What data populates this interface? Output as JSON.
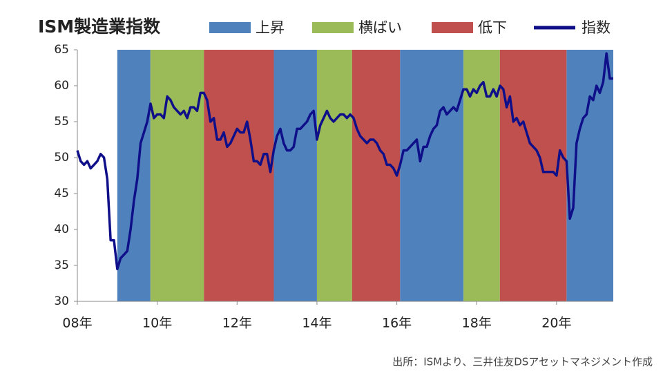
{
  "chart_data": {
    "type": "line",
    "title": "ISM製造業指数",
    "source": "出所：ISMより、三井住友DSアセットマネジメント作成",
    "phases": [
      {
        "name": "上昇",
        "color": "#4f81bd",
        "periods": [
          [
            2009.0,
            2009.83
          ],
          [
            2012.92,
            2014.0
          ],
          [
            2016.08,
            2017.67
          ],
          [
            2020.25,
            2021.42
          ]
        ]
      },
      {
        "name": "横ばい",
        "color": "#9bbb59",
        "periods": [
          [
            2009.83,
            2011.17
          ],
          [
            2014.0,
            2014.88
          ],
          [
            2017.67,
            2018.58
          ]
        ]
      },
      {
        "name": "低下",
        "color": "#c0504d",
        "periods": [
          [
            2011.17,
            2012.92
          ],
          [
            2014.88,
            2016.08
          ],
          [
            2018.58,
            2020.25
          ]
        ]
      }
    ],
    "x": [
      2008,
      2008.083,
      2008.167,
      2008.25,
      2008.333,
      2008.417,
      2008.5,
      2008.583,
      2008.667,
      2008.75,
      2008.833,
      2008.917,
      2009,
      2009.083,
      2009.167,
      2009.25,
      2009.333,
      2009.417,
      2009.5,
      2009.583,
      2009.667,
      2009.75,
      2009.833,
      2009.917,
      2010,
      2010.083,
      2010.167,
      2010.25,
      2010.333,
      2010.417,
      2010.5,
      2010.583,
      2010.667,
      2010.75,
      2010.833,
      2010.917,
      2011,
      2011.083,
      2011.167,
      2011.25,
      2011.333,
      2011.417,
      2011.5,
      2011.583,
      2011.667,
      2011.75,
      2011.833,
      2011.917,
      2012,
      2012.083,
      2012.167,
      2012.25,
      2012.333,
      2012.417,
      2012.5,
      2012.583,
      2012.667,
      2012.75,
      2012.833,
      2012.917,
      2013,
      2013.083,
      2013.167,
      2013.25,
      2013.333,
      2013.417,
      2013.5,
      2013.583,
      2013.667,
      2013.75,
      2013.833,
      2013.917,
      2014,
      2014.083,
      2014.167,
      2014.25,
      2014.333,
      2014.417,
      2014.5,
      2014.583,
      2014.667,
      2014.75,
      2014.833,
      2014.917,
      2015,
      2015.083,
      2015.167,
      2015.25,
      2015.333,
      2015.417,
      2015.5,
      2015.583,
      2015.667,
      2015.75,
      2015.833,
      2015.917,
      2016,
      2016.083,
      2016.167,
      2016.25,
      2016.333,
      2016.417,
      2016.5,
      2016.583,
      2016.667,
      2016.75,
      2016.833,
      2016.917,
      2017,
      2017.083,
      2017.167,
      2017.25,
      2017.333,
      2017.417,
      2017.5,
      2017.583,
      2017.667,
      2017.75,
      2017.833,
      2017.917,
      2018,
      2018.083,
      2018.167,
      2018.25,
      2018.333,
      2018.417,
      2018.5,
      2018.583,
      2018.667,
      2018.75,
      2018.833,
      2018.917,
      2019,
      2019.083,
      2019.167,
      2019.25,
      2019.333,
      2019.417,
      2019.5,
      2019.583,
      2019.667,
      2019.75,
      2019.833,
      2019.917,
      2020,
      2020.083,
      2020.167,
      2020.25,
      2020.333,
      2020.417,
      2020.5,
      2020.583,
      2020.667,
      2020.75,
      2020.833,
      2020.917,
      2021,
      2021.083,
      2021.167,
      2021.25,
      2021.333,
      2021.417
    ],
    "series": [
      {
        "name": "指数",
        "color": "#0f0f8a",
        "values": [
          51,
          49.5,
          49,
          49.5,
          48.5,
          49,
          49.5,
          50.5,
          50,
          47,
          38.5,
          38.5,
          34.5,
          36,
          36.5,
          37,
          40,
          44,
          47,
          52,
          53.5,
          55,
          57.5,
          55.5,
          56,
          56,
          55.5,
          58.5,
          58,
          57,
          56.5,
          56,
          56.5,
          55.5,
          57,
          57,
          56.5,
          59,
          59,
          58,
          55,
          55.5,
          52.5,
          52.5,
          53.5,
          51.5,
          52,
          53,
          54,
          53.5,
          53.5,
          55,
          52.5,
          49.5,
          49.5,
          49,
          50.5,
          50.5,
          48,
          51,
          53,
          54,
          52,
          51,
          51,
          51.5,
          54,
          54,
          54.5,
          55,
          56,
          56.5,
          52.5,
          54.5,
          55.5,
          56.5,
          55.5,
          55,
          55.5,
          56,
          56,
          55.5,
          56,
          55.5,
          54,
          53,
          52.5,
          52,
          52.5,
          52.5,
          52,
          51,
          50.5,
          49,
          49,
          48.5,
          47.5,
          49,
          51,
          51,
          51.5,
          52,
          52.5,
          49.5,
          51.5,
          51.5,
          53,
          54,
          54.5,
          56.5,
          57,
          56,
          56.5,
          57,
          56.5,
          58,
          59.5,
          59.5,
          58.5,
          59.5,
          59,
          60,
          60.5,
          58.5,
          58.5,
          59.5,
          58.5,
          60,
          59.5,
          57,
          58.5,
          55,
          55.5,
          54.5,
          55,
          53.5,
          52,
          51.5,
          51,
          50,
          48,
          48,
          48,
          48,
          47.5,
          51,
          50,
          49.5,
          41.5,
          43,
          52,
          54,
          55.5,
          56,
          58.5,
          58,
          60,
          59,
          60.5,
          64.5,
          61,
          61
        ]
      }
    ],
    "xlim": [
      2008,
      2021.42
    ],
    "xticks": [
      {
        "value": 2008,
        "label": "08年"
      },
      {
        "value": 2010,
        "label": "10年"
      },
      {
        "value": 2012,
        "label": "12年"
      },
      {
        "value": 2014,
        "label": "14年"
      },
      {
        "value": 2016,
        "label": "16年"
      },
      {
        "value": 2018,
        "label": "18年"
      },
      {
        "value": 2020,
        "label": "20年"
      }
    ],
    "ylim": [
      30,
      65
    ],
    "yticks": [
      30,
      35,
      40,
      45,
      50,
      55,
      60,
      65
    ]
  }
}
